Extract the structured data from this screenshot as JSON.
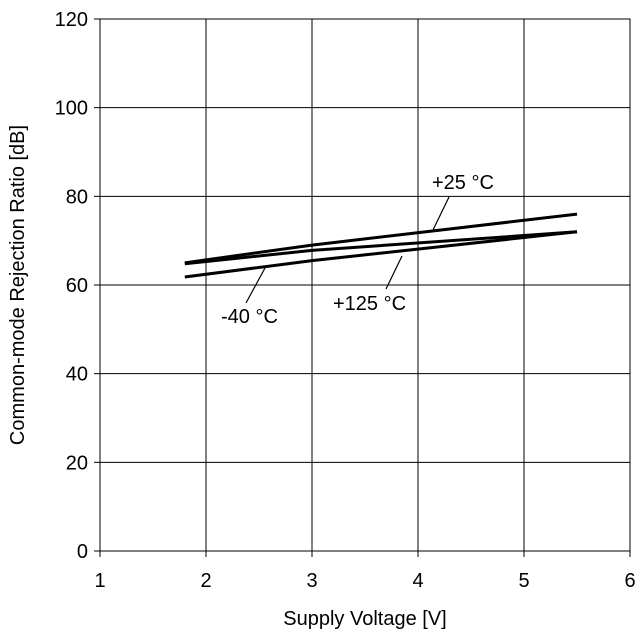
{
  "chart_data": {
    "type": "line",
    "title": "",
    "xlabel": "Supply Voltage [V]",
    "ylabel": "Common-mode Rejection Ratio [dB]",
    "xlim": [
      1,
      6
    ],
    "ylim": [
      0,
      120
    ],
    "xticks": [
      1,
      2,
      3,
      4,
      5,
      6
    ],
    "yticks": [
      0,
      20,
      40,
      60,
      80,
      100,
      120
    ],
    "grid": true,
    "series": [
      {
        "name": "+25 °C",
        "x": [
          1.8,
          3.0,
          5.5
        ],
        "y": [
          65,
          69,
          76
        ]
      },
      {
        "name": "-40 °C",
        "x": [
          1.8,
          3.0,
          5.5
        ],
        "y": [
          61.8,
          65.5,
          72
        ]
      },
      {
        "name": "+125 °C",
        "x": [
          1.8,
          3.0,
          5.5
        ],
        "y": [
          64.8,
          67.8,
          72
        ]
      }
    ],
    "annotations": [
      {
        "text": "+25 °C",
        "series": 0
      },
      {
        "text": "-40 °C",
        "series": 1
      },
      {
        "text": "+125 °C",
        "series": 2
      }
    ]
  }
}
